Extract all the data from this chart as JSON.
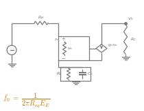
{
  "bg_color": "#ffffff",
  "line_color": "#7a7a7a",
  "formula_color": "#c87800",
  "lw": 0.9
}
